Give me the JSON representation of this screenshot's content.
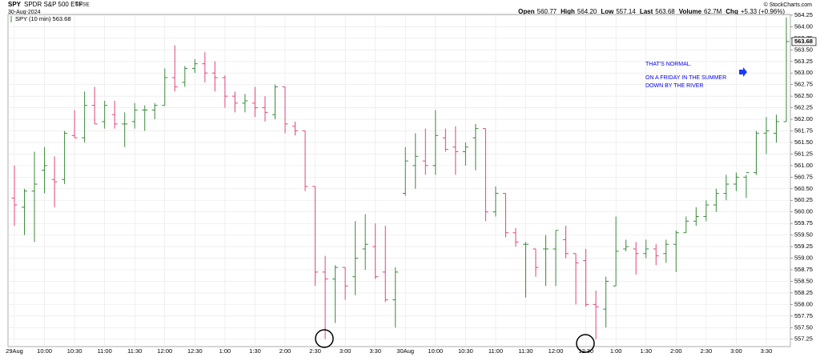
{
  "chart_data": {
    "type": "ohlc",
    "symbol": "SPY",
    "name": "SPDR S&P 500 ETF",
    "exchange": "NYSE",
    "date": "30-Aug-2024",
    "credit": "© StockCharts.com",
    "quote": [
      {
        "label": "Open",
        "value": "560.77"
      },
      {
        "label": "High",
        "value": "564.20"
      },
      {
        "label": "Low",
        "value": "557.14"
      },
      {
        "label": "Last",
        "value": "563.68"
      },
      {
        "label": "Volume",
        "value": "62.7M"
      },
      {
        "label": "Chg",
        "value": "+5.33 (+0.96%)"
      }
    ],
    "annotations": [
      "THAT'S NORMAL.",
      "ON A FRIDAY IN THE SUMMER",
      "DOWN BY THE RIVER"
    ],
    "categories": [
      "29Aug",
      null,
      null,
      "10:00",
      null,
      null,
      "10:30",
      null,
      null,
      "11:00",
      null,
      null,
      "11:30",
      null,
      null,
      "12:00",
      null,
      null,
      "12:30",
      null,
      null,
      "1:00",
      null,
      null,
      "1:30",
      null,
      null,
      "2:00",
      null,
      null,
      "2:30",
      null,
      null,
      "3:00",
      null,
      null,
      "3:30",
      null,
      null,
      "30Aug",
      null,
      null,
      "10:00",
      null,
      null,
      "10:30",
      null,
      null,
      "11:00",
      null,
      null,
      "11:30",
      null,
      null,
      "12:00",
      null,
      null,
      "12:30",
      null,
      null,
      "1:00",
      null,
      null,
      "1:30",
      null,
      null,
      "2:00",
      null,
      null,
      "2:30",
      null,
      null,
      "3:00",
      null,
      null,
      "3:30",
      null,
      null
    ],
    "up_color": "#3a8a3a",
    "down_color": "#e0457b",
    "grid": true,
    "ylim": [
      557.09,
      564.37
    ],
    "yticks": [
      557.25,
      {
        "value": 557.5,
        "label": "557.50"
      },
      557.75,
      {
        "value": 558,
        "label": "558.00"
      },
      558.25,
      {
        "value": 558.5,
        "label": "558.50"
      },
      558.75,
      {
        "value": 559,
        "label": "559.00"
      },
      559.25,
      {
        "value": 559.5,
        "label": "559.50"
      },
      559.75,
      {
        "value": 560,
        "label": "560.00"
      },
      560.25,
      {
        "value": 560.5,
        "label": "560.50"
      },
      560.75,
      {
        "value": 561,
        "label": "561.00"
      },
      561.25,
      {
        "value": 561.5,
        "label": "561.50"
      },
      561.75,
      {
        "value": 562,
        "label": "562.00"
      },
      562.25,
      {
        "value": 562.5,
        "label": "562.50"
      },
      562.75,
      {
        "value": 563,
        "label": "563.00"
      },
      563.25,
      {
        "value": 563.5,
        "label": "563.50"
      },
      563.75,
      {
        "value": 564,
        "label": "564.00"
      },
      564.25
    ],
    "series": [
      {
        "name": "SPY (10 min) 563.68",
        "open": [
          560.3,
          560.1,
          560.45,
          560.9,
          560.7,
          560.7,
          561.65,
          561.6,
          562.3,
          561.95,
          562.1,
          561.9,
          561.95,
          562.2,
          562.2,
          562.3,
          562.9,
          562.8,
          563.1,
          563.2,
          563.0,
          562.9,
          562.5,
          562.35,
          562.35,
          562.25,
          562.1,
          562.7,
          561.85,
          561.75,
          560.55,
          558.7,
          558.55,
          558.8,
          558.6,
          559.2,
          559.25,
          558.7,
          558.1,
          560.4,
          561.0,
          561.1,
          561.0,
          561.6,
          561.4,
          561.3,
          561.6,
          561.8,
          560.0,
          560.4,
          559.55,
          559.3,
          559.2,
          559.2,
          559.2,
          559.4,
          559.1,
          558.95,
          558.0,
          557.9,
          558.4,
          559.2,
          559.2,
          559.1,
          559.2,
          559.1,
          559.3,
          559.55,
          559.8,
          559.9,
          560.15,
          560.4,
          560.6,
          560.75,
          560.85,
          561.7,
          561.7,
          561.95
        ],
        "high": [
          561.0,
          560.5,
          561.3,
          561.4,
          561.2,
          561.75,
          562.2,
          562.6,
          562.7,
          562.4,
          562.4,
          562.15,
          562.35,
          562.3,
          562.35,
          563.1,
          563.6,
          563.15,
          563.3,
          563.45,
          563.25,
          562.95,
          562.6,
          562.55,
          562.7,
          562.5,
          562.75,
          562.7,
          561.95,
          561.75,
          560.55,
          559.05,
          558.85,
          558.8,
          559.8,
          559.95,
          559.75,
          559.7,
          558.8,
          561.4,
          561.7,
          561.8,
          562.2,
          561.8,
          561.85,
          561.5,
          561.9,
          561.8,
          560.55,
          560.4,
          559.65,
          559.35,
          559.2,
          559.5,
          559.6,
          559.7,
          559.1,
          559.2,
          558.3,
          558.6,
          559.9,
          559.4,
          559.35,
          559.4,
          559.3,
          559.4,
          559.6,
          559.9,
          560.1,
          560.25,
          560.5,
          560.8,
          560.85,
          560.8,
          561.75,
          562.05,
          562.1,
          564.2
        ],
        "low": [
          559.7,
          559.5,
          559.35,
          560.4,
          560.1,
          560.6,
          561.6,
          561.5,
          561.9,
          561.8,
          561.8,
          561.4,
          561.8,
          561.75,
          562.0,
          562.3,
          562.6,
          562.7,
          563.0,
          562.8,
          562.6,
          562.25,
          562.15,
          562.15,
          562.05,
          561.95,
          562.0,
          561.7,
          561.65,
          560.45,
          558.4,
          557.25,
          557.6,
          558.1,
          558.2,
          558.75,
          558.55,
          558.05,
          557.5,
          560.35,
          560.5,
          560.8,
          560.8,
          561.3,
          560.8,
          561.0,
          560.9,
          559.8,
          559.9,
          559.45,
          559.25,
          558.15,
          558.6,
          558.4,
          558.4,
          559.0,
          558.0,
          557.95,
          557.25,
          557.5,
          558.4,
          559.15,
          558.65,
          559.0,
          558.85,
          558.9,
          558.7,
          559.55,
          559.7,
          559.8,
          560.0,
          560.25,
          560.45,
          560.3,
          560.8,
          561.25,
          561.5,
          561.95
        ],
        "close": [
          560.15,
          560.45,
          560.6,
          561.0,
          560.65,
          561.7,
          561.6,
          562.3,
          561.9,
          562.3,
          561.9,
          561.9,
          562.2,
          562.2,
          562.3,
          562.9,
          562.7,
          563.1,
          563.2,
          563.0,
          562.9,
          562.5,
          562.35,
          562.4,
          562.25,
          562.15,
          562.7,
          561.9,
          561.75,
          560.55,
          558.7,
          558.55,
          558.8,
          558.4,
          559.0,
          559.3,
          558.6,
          558.1,
          558.7,
          561.1,
          561.2,
          561.0,
          561.65,
          561.35,
          561.3,
          561.4,
          561.8,
          560.0,
          560.4,
          559.55,
          559.35,
          559.3,
          558.8,
          559.2,
          559.6,
          559.1,
          558.9,
          558.0,
          557.95,
          558.5,
          559.15,
          559.25,
          559.1,
          559.2,
          559.05,
          559.3,
          559.55,
          559.8,
          559.9,
          560.15,
          560.4,
          560.6,
          560.75,
          560.85,
          561.7,
          561.75,
          561.95,
          563.68
        ]
      }
    ]
  }
}
